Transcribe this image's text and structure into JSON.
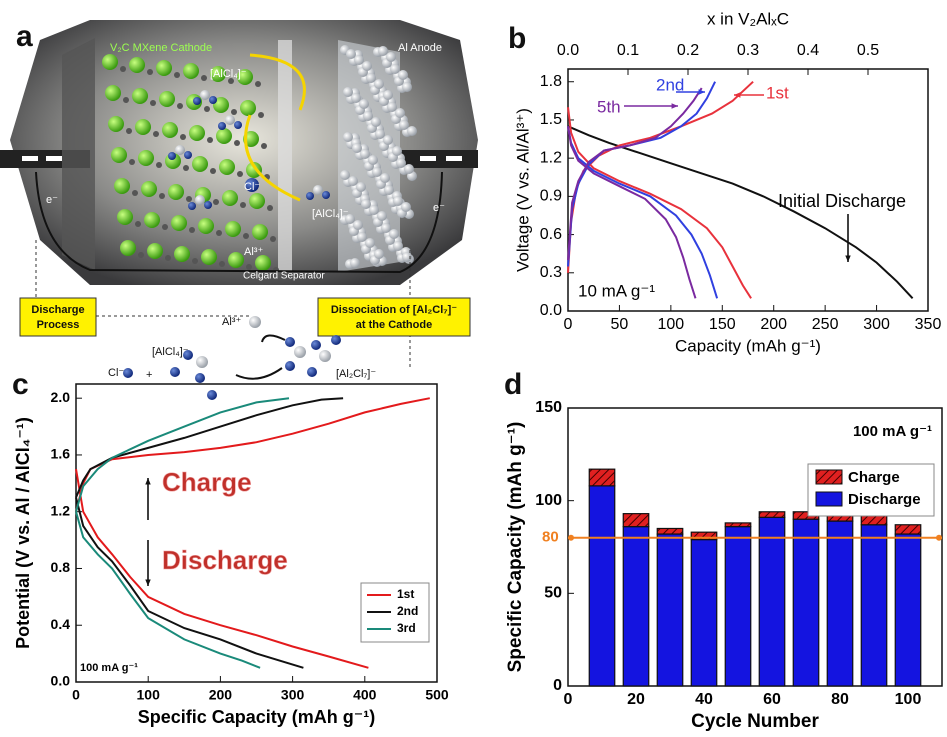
{
  "panel_labels": [
    "a",
    "b",
    "c",
    "d"
  ],
  "diagram": {
    "cathode_label": "V₂C MXene Cathode",
    "anode_label": "Al Anode",
    "separator_label": "Celgard Separator",
    "inner_labels": [
      "[AlCl₄]⁻",
      "Cl⁻",
      "Al³⁺",
      "[AlCl₄]⁻"
    ],
    "electron_labels": [
      "e⁻",
      "e⁻"
    ],
    "discharge_box": [
      "Discharge",
      "Process"
    ],
    "dissociation_box": [
      "Dissociation of [Al₂Cl₇]⁻",
      "at the Cathode"
    ],
    "scheme_labels": [
      "Al³⁺",
      "[AlCl₄]⁻",
      "Cl⁻",
      "+",
      "[Al₂Cl₇]⁻"
    ]
  },
  "chart_data": [
    {
      "type": "line",
      "x_label": "Capacity (mAh g⁻¹)",
      "y_label": "Voltage (V vs. Al/Al³⁺)",
      "x2_label": "x in V₂AlₓC",
      "xlim": [
        0,
        350
      ],
      "xticks": [
        0,
        50,
        100,
        150,
        200,
        250,
        300,
        350
      ],
      "ylim": [
        0,
        1.9
      ],
      "yticks": [
        {
          "value": 0,
          "label": "0.0"
        },
        0.3,
        0.6,
        0.9,
        1.2,
        1.5,
        1.8
      ],
      "x2lim": [
        0,
        0.6
      ],
      "x2ticks": [
        {
          "value": 0,
          "label": "0.0"
        },
        0.1,
        0.2,
        0.3,
        0.4,
        0.5
      ],
      "annotations": [
        "Initial Discharge",
        "10 mA g⁻¹"
      ],
      "series": [
        {
          "name": "Initial Discharge",
          "color": "#111111",
          "x": [
            0,
            20,
            40,
            70,
            100,
            130,
            160,
            190,
            220,
            250,
            280,
            300,
            320,
            335
          ],
          "values": [
            1.45,
            1.38,
            1.32,
            1.24,
            1.16,
            1.08,
            1.0,
            0.9,
            0.78,
            0.65,
            0.5,
            0.38,
            0.23,
            0.1
          ]
        },
        {
          "name": "1st",
          "color": "#e8323c",
          "x": [
            0,
            3,
            10,
            25,
            50,
            80,
            110,
            135,
            150,
            160,
            170,
            178,
            null,
            0,
            3,
            8,
            15,
            30,
            50,
            80,
            110,
            140,
            160,
            180
          ],
          "values": [
            1.6,
            1.4,
            1.25,
            1.12,
            1.02,
            0.92,
            0.8,
            0.65,
            0.5,
            0.35,
            0.2,
            0.1,
            null,
            0.3,
            0.7,
            0.95,
            1.1,
            1.22,
            1.3,
            1.36,
            1.45,
            1.55,
            1.65,
            1.8
          ]
        },
        {
          "name": "2nd",
          "color": "#3040e0",
          "x": [
            0,
            3,
            10,
            25,
            50,
            80,
            105,
            120,
            130,
            138,
            145,
            null,
            0,
            4,
            10,
            20,
            35,
            60,
            90,
            110,
            125,
            135,
            143
          ],
          "values": [
            1.45,
            1.32,
            1.2,
            1.1,
            1.0,
            0.9,
            0.75,
            0.6,
            0.45,
            0.28,
            0.1,
            null,
            0.35,
            0.8,
            1.0,
            1.15,
            1.26,
            1.3,
            1.36,
            1.45,
            1.55,
            1.67,
            1.8
          ]
        },
        {
          "name": "5th",
          "color": "#7a2aa0",
          "x": [
            0,
            3,
            10,
            25,
            50,
            75,
            95,
            105,
            112,
            118,
            124,
            null,
            0,
            4,
            10,
            20,
            35,
            60,
            85,
            100,
            112,
            122,
            130
          ],
          "values": [
            1.45,
            1.3,
            1.18,
            1.08,
            0.98,
            0.88,
            0.72,
            0.58,
            0.42,
            0.25,
            0.1,
            null,
            0.4,
            0.85,
            1.02,
            1.17,
            1.26,
            1.3,
            1.36,
            1.45,
            1.55,
            1.65,
            1.75
          ]
        }
      ]
    },
    {
      "type": "line",
      "x_label": "Specific Capacity (mAh g⁻¹)",
      "y_label": "Potential (V vs. Al / AlCl₄⁻¹)",
      "xlim": [
        0,
        500
      ],
      "xticks": [
        0,
        100,
        200,
        300,
        400,
        500
      ],
      "ylim": [
        0,
        2.1
      ],
      "yticks": [
        {
          "value": 0,
          "label": "0.0"
        },
        0.4,
        0.8,
        1.2,
        1.6,
        {
          "value": 2,
          "label": "2.0"
        }
      ],
      "annotations": [
        "Charge",
        "Discharge",
        "100 mA g⁻¹"
      ],
      "legend": "lower right",
      "series": [
        {
          "name": "1st",
          "color": "#e31a1c",
          "x": [
            0,
            10,
            30,
            50,
            75,
            100,
            150,
            200,
            250,
            300,
            350,
            405,
            null,
            0,
            10,
            20,
            50,
            100,
            150,
            200,
            250,
            300,
            350,
            400,
            450,
            490
          ],
          "values": [
            1.5,
            1.2,
            1.02,
            0.9,
            0.74,
            0.6,
            0.48,
            0.4,
            0.33,
            0.25,
            0.18,
            0.1,
            null,
            1.2,
            1.4,
            1.5,
            1.57,
            1.6,
            1.62,
            1.65,
            1.69,
            1.75,
            1.82,
            1.9,
            1.96,
            2.0
          ]
        },
        {
          "name": "2nd",
          "color": "#111111",
          "x": [
            0,
            10,
            30,
            50,
            75,
            100,
            150,
            200,
            250,
            315,
            null,
            0,
            10,
            20,
            50,
            100,
            150,
            200,
            250,
            300,
            340,
            370
          ],
          "values": [
            1.3,
            1.1,
            0.95,
            0.85,
            0.68,
            0.5,
            0.38,
            0.3,
            0.2,
            0.1,
            null,
            1.3,
            1.42,
            1.5,
            1.58,
            1.65,
            1.72,
            1.8,
            1.88,
            1.95,
            1.99,
            2.0
          ]
        },
        {
          "name": "3rd",
          "color": "#1a8a7a",
          "x": [
            0,
            10,
            30,
            50,
            75,
            100,
            150,
            200,
            230,
            255,
            null,
            0,
            10,
            30,
            50,
            100,
            150,
            200,
            250,
            295
          ],
          "values": [
            1.2,
            1.02,
            0.9,
            0.8,
            0.62,
            0.45,
            0.3,
            0.2,
            0.15,
            0.1,
            null,
            1.2,
            1.38,
            1.5,
            1.58,
            1.7,
            1.8,
            1.9,
            1.97,
            2.0
          ]
        }
      ]
    },
    {
      "type": "stacked_bar",
      "x_label": "Cycle Number",
      "y_label": "Specific Capacity (mAh g⁻¹)",
      "xlim": [
        0,
        110
      ],
      "xticks": [
        0,
        20,
        40,
        60,
        80,
        100
      ],
      "ylim": [
        0,
        150
      ],
      "yticks": [
        0,
        50,
        100,
        150
      ],
      "annotations": [
        "100 mA g⁻¹"
      ],
      "legend": "upper right",
      "reference_line": 80,
      "reference_color": "#f08020",
      "x": [
        10,
        20,
        30,
        40,
        50,
        60,
        70,
        80,
        90,
        100
      ],
      "series": [
        {
          "name": "Discharge",
          "color": "#1414e0",
          "values": [
            108,
            86,
            82,
            79,
            86,
            91,
            90,
            89,
            87,
            82
          ]
        },
        {
          "name": "Charge",
          "color": "#e02020",
          "values": [
            9,
            7,
            3,
            4,
            2,
            3,
            4,
            7,
            6,
            5
          ]
        }
      ]
    }
  ]
}
